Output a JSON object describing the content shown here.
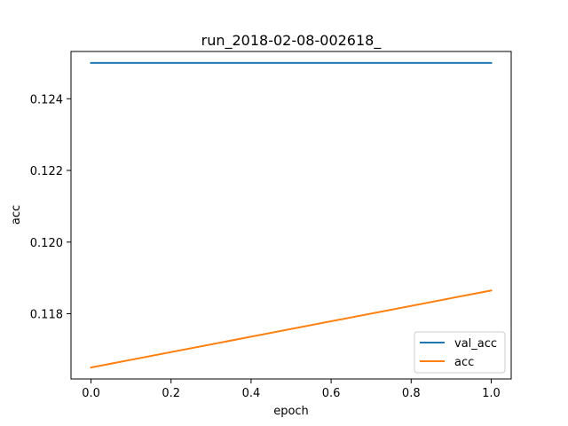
{
  "chart_data": {
    "type": "line",
    "title": "run_2018-02-08-002618_",
    "xlabel": "epoch",
    "ylabel": "acc",
    "xlim": [
      -0.05,
      1.05
    ],
    "ylim": [
      0.11618,
      0.12532
    ],
    "x_ticks": [
      "0.0",
      "0.2",
      "0.4",
      "0.6",
      "0.8",
      "1.0"
    ],
    "y_ticks": [
      "0.118",
      "0.120",
      "0.122",
      "0.124"
    ],
    "grid": false,
    "legend_position": "lower-right",
    "series": [
      {
        "name": "val_acc",
        "color": "#1f77b4",
        "x": [
          0.0,
          1.0
        ],
        "y": [
          0.125,
          0.125
        ]
      },
      {
        "name": "acc",
        "color": "#ff7f0e",
        "x": [
          0.0,
          1.0
        ],
        "y": [
          0.1165,
          0.11865
        ]
      }
    ]
  }
}
